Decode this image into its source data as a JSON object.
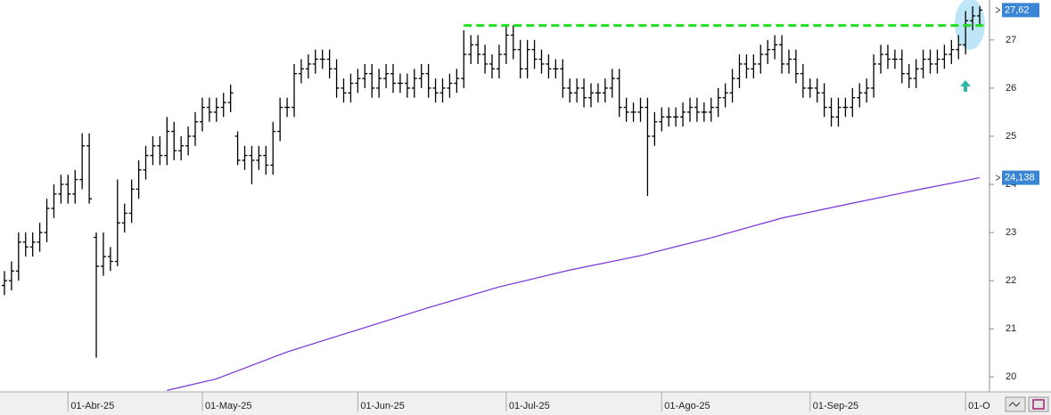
{
  "chart_data": {
    "type": "ohlc",
    "categories": [
      null,
      null,
      null,
      null,
      null,
      null,
      null,
      null,
      null,
      "01-Abr-25",
      null,
      null,
      null,
      null,
      null,
      null,
      null,
      null,
      null,
      null,
      null,
      null,
      null,
      null,
      null,
      null,
      null,
      null,
      "01-May-25",
      null,
      null,
      null,
      null,
      null,
      null,
      null,
      null,
      null,
      null,
      null,
      null,
      null,
      null,
      null,
      null,
      null,
      null,
      null,
      null,
      null,
      "01-Jun-25",
      null,
      null,
      null,
      null,
      null,
      null,
      null,
      null,
      null,
      null,
      null,
      null,
      null,
      null,
      null,
      null,
      null,
      null,
      null,
      null,
      "01-Jul-25",
      null,
      null,
      null,
      null,
      null,
      null,
      null,
      null,
      null,
      null,
      null,
      null,
      null,
      null,
      null,
      null,
      null,
      null,
      null,
      null,
      null,
      "01-Ago-25",
      null,
      null,
      null,
      null,
      null,
      null,
      null,
      null,
      null,
      null,
      null,
      null,
      null,
      null,
      null,
      null,
      null,
      null,
      null,
      null,
      "01-Sep-25",
      null,
      null,
      null,
      null,
      null,
      null,
      null,
      null,
      null,
      null,
      null,
      null,
      null,
      null,
      null,
      null,
      null,
      null,
      null,
      null,
      null,
      "01-O",
      null,
      null
    ],
    "ohlc": {
      "color": "#000000",
      "open": [
        21.9,
        22.0,
        22.2,
        22.8,
        22.7,
        22.8,
        23.0,
        23.5,
        23.8,
        24.0,
        23.8,
        24.1,
        24.8,
        22.9,
        22.3,
        22.5,
        22.4,
        23.2,
        23.4,
        23.9,
        24.3,
        24.6,
        24.8,
        24.6,
        25.1,
        24.7,
        24.8,
        25.0,
        25.3,
        25.6,
        25.5,
        25.6,
        25.7,
        25.0,
        24.5,
        24.6,
        24.5,
        24.6,
        24.4,
        25.1,
        25.6,
        25.6,
        26.3,
        26.4,
        26.5,
        26.6,
        26.6,
        26.4,
        26.0,
        25.9,
        26.1,
        26.2,
        26.3,
        26.0,
        26.2,
        26.3,
        26.1,
        26.1,
        26.0,
        26.2,
        26.3,
        26.0,
        25.9,
        26.0,
        26.1,
        26.2,
        26.7,
        26.9,
        26.7,
        26.5,
        26.4,
        26.7,
        27.1,
        26.8,
        26.4,
        26.8,
        26.6,
        26.5,
        26.4,
        26.4,
        26.0,
        25.9,
        26.0,
        25.8,
        25.9,
        25.9,
        26.0,
        26.2,
        25.6,
        25.5,
        25.5,
        25.6,
        25.0,
        25.3,
        25.4,
        25.4,
        25.4,
        25.5,
        25.6,
        25.5,
        25.5,
        25.6,
        25.8,
        25.9,
        26.2,
        26.5,
        26.4,
        26.5,
        26.7,
        26.8,
        26.9,
        26.5,
        26.6,
        26.3,
        26.0,
        26.0,
        25.9,
        25.6,
        25.4,
        25.6,
        25.6,
        25.8,
        25.9,
        26.0,
        26.5,
        26.7,
        26.6,
        26.6,
        26.3,
        26.2,
        26.4,
        26.6,
        26.5,
        26.6,
        26.7,
        26.8,
        26.9,
        27.4,
        27.5
      ],
      "high": [
        22.2,
        22.4,
        23.0,
        23.0,
        23.0,
        23.2,
        23.7,
        24.0,
        24.2,
        24.2,
        24.3,
        25.06,
        25.06,
        23.0,
        23.0,
        22.7,
        24.1,
        23.6,
        24.1,
        24.5,
        24.8,
        25.0,
        25.0,
        25.4,
        25.3,
        25.0,
        25.2,
        25.5,
        25.8,
        25.8,
        25.8,
        25.9,
        26.07,
        25.1,
        24.8,
        24.8,
        24.8,
        24.8,
        25.3,
        25.8,
        25.8,
        26.5,
        26.6,
        26.7,
        26.8,
        26.8,
        26.8,
        26.6,
        26.2,
        26.3,
        26.4,
        26.5,
        26.5,
        26.4,
        26.5,
        26.5,
        26.3,
        26.3,
        26.4,
        26.5,
        26.5,
        26.2,
        26.2,
        26.3,
        26.4,
        27.2,
        27.1,
        27.1,
        26.9,
        26.7,
        26.9,
        27.3,
        27.3,
        27.0,
        27.0,
        27.0,
        26.8,
        26.7,
        26.6,
        26.6,
        26.2,
        26.2,
        26.2,
        26.1,
        26.1,
        26.2,
        26.4,
        26.4,
        25.8,
        25.7,
        25.8,
        25.8,
        25.5,
        25.6,
        25.6,
        25.6,
        25.7,
        25.8,
        25.8,
        25.7,
        25.8,
        26.0,
        26.1,
        26.4,
        26.7,
        26.7,
        26.7,
        26.9,
        27.0,
        27.1,
        27.1,
        26.8,
        26.8,
        26.5,
        26.2,
        26.2,
        26.1,
        25.8,
        25.8,
        25.8,
        26.0,
        26.1,
        26.2,
        26.7,
        26.9,
        26.9,
        26.8,
        26.8,
        26.5,
        26.6,
        26.8,
        26.8,
        26.8,
        26.9,
        27.0,
        27.1,
        27.6,
        27.7,
        27.7
      ],
      "low": [
        21.7,
        21.8,
        22.0,
        22.5,
        22.5,
        22.6,
        22.8,
        23.3,
        23.6,
        23.6,
        23.6,
        23.9,
        23.6,
        20.4,
        22.1,
        22.2,
        22.3,
        23.0,
        23.2,
        23.7,
        24.1,
        24.4,
        24.4,
        24.4,
        24.5,
        24.5,
        24.6,
        24.8,
        25.1,
        25.3,
        25.3,
        25.4,
        25.5,
        24.4,
        24.3,
        24.0,
        24.3,
        24.2,
        24.2,
        24.9,
        25.4,
        25.4,
        26.1,
        26.2,
        26.3,
        26.4,
        26.2,
        25.8,
        25.7,
        25.7,
        25.9,
        26.0,
        25.8,
        25.8,
        26.0,
        25.9,
        25.9,
        25.8,
        25.8,
        26.0,
        25.8,
        25.7,
        25.7,
        25.8,
        25.9,
        26.0,
        26.5,
        26.5,
        26.3,
        26.2,
        26.2,
        26.5,
        26.6,
        26.2,
        26.2,
        26.4,
        26.3,
        26.2,
        26.2,
        25.8,
        25.7,
        25.7,
        25.6,
        25.6,
        25.7,
        25.7,
        25.8,
        25.4,
        25.3,
        25.3,
        25.3,
        23.76,
        24.8,
        25.1,
        25.2,
        25.2,
        25.2,
        25.3,
        25.3,
        25.3,
        25.3,
        25.4,
        25.6,
        25.7,
        26.0,
        26.2,
        26.2,
        26.3,
        26.5,
        26.6,
        26.3,
        26.3,
        26.1,
        25.8,
        25.8,
        25.7,
        25.4,
        25.2,
        25.2,
        25.4,
        25.4,
        25.6,
        25.7,
        25.8,
        26.3,
        26.4,
        26.4,
        26.1,
        26.0,
        26.0,
        26.2,
        26.3,
        26.3,
        26.4,
        26.5,
        26.6,
        26.7,
        27.2,
        27.3
      ],
      "close": [
        22.0,
        22.2,
        22.8,
        22.7,
        22.8,
        23.0,
        23.5,
        23.8,
        24.0,
        23.8,
        24.1,
        24.8,
        23.7,
        22.3,
        22.5,
        22.4,
        23.2,
        23.4,
        23.9,
        24.3,
        24.6,
        24.8,
        24.6,
        25.1,
        24.7,
        24.8,
        25.0,
        25.3,
        25.6,
        25.5,
        25.6,
        25.7,
        25.9,
        24.5,
        24.6,
        24.5,
        24.6,
        24.4,
        25.1,
        25.6,
        25.6,
        26.3,
        26.4,
        26.5,
        26.6,
        26.6,
        26.4,
        26.0,
        25.9,
        26.1,
        26.2,
        26.3,
        26.0,
        26.2,
        26.3,
        26.1,
        26.1,
        26.0,
        26.2,
        26.3,
        26.0,
        25.9,
        26.0,
        26.1,
        26.2,
        26.7,
        26.9,
        26.7,
        26.5,
        26.4,
        26.7,
        27.1,
        26.8,
        26.4,
        26.8,
        26.6,
        26.5,
        26.4,
        26.4,
        26.0,
        25.9,
        26.0,
        25.8,
        25.9,
        25.9,
        26.0,
        26.2,
        25.6,
        25.5,
        25.5,
        25.6,
        25.0,
        25.3,
        25.4,
        25.4,
        25.4,
        25.5,
        25.6,
        25.5,
        25.5,
        25.6,
        25.8,
        25.9,
        26.2,
        26.5,
        26.4,
        26.5,
        26.7,
        26.8,
        26.9,
        26.5,
        26.6,
        26.3,
        26.0,
        26.0,
        25.9,
        25.6,
        25.4,
        25.6,
        25.6,
        25.8,
        25.9,
        26.0,
        26.5,
        26.7,
        26.6,
        26.6,
        26.3,
        26.2,
        26.4,
        26.6,
        26.5,
        26.6,
        26.7,
        26.8,
        26.9,
        27.4,
        27.5,
        27.62
      ]
    },
    "moving_average": {
      "color": "#7a2fd8",
      "x": [
        23,
        30,
        40,
        50,
        60,
        70,
        80,
        90,
        100,
        110,
        120,
        130,
        138
      ],
      "values": [
        19.72,
        19.96,
        20.52,
        20.98,
        21.44,
        21.87,
        22.22,
        22.52,
        22.89,
        23.3,
        23.61,
        23.91,
        24.138
      ]
    },
    "resistance": {
      "value": 27.3,
      "x": [
        65,
        139
      ],
      "color": "#22dd22"
    },
    "last_labels": [
      {
        "value": 27.62,
        "label": "27,62"
      },
      {
        "value": 24.138,
        "label": "24,138"
      }
    ],
    "ylim": [
      19.69,
      27.83
    ],
    "yticks": [
      20,
      21,
      22,
      23,
      24,
      25,
      26,
      27
    ]
  }
}
